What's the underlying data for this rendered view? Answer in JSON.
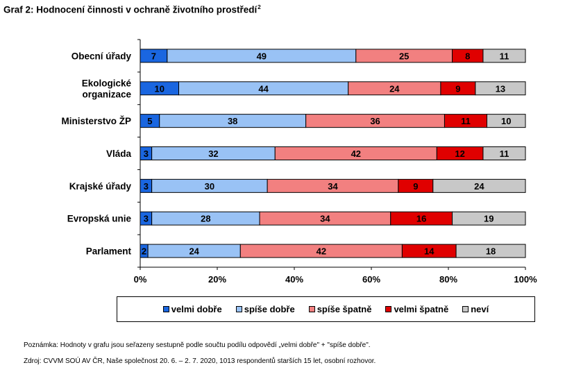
{
  "title": "Graf 2: Hodnocení činnosti v ochraně životního prostředí",
  "title_sup": "2",
  "chart_data": {
    "type": "bar",
    "orientation": "horizontal",
    "stacked": true,
    "percent": true,
    "categories": [
      [
        "Obecní úřady"
      ],
      [
        "Ekologické",
        "organizace"
      ],
      [
        "Ministerstvo ŽP"
      ],
      [
        "Vláda"
      ],
      [
        "Krajské úřady"
      ],
      [
        "Evropská unie"
      ],
      [
        "Parlament"
      ]
    ],
    "series": [
      {
        "name": "velmi dobře",
        "color": "#1A66E0",
        "values": [
          7,
          10,
          5,
          3,
          3,
          3,
          2
        ]
      },
      {
        "name": "spíše dobře",
        "color": "#99C2F5",
        "values": [
          49,
          44,
          38,
          32,
          30,
          28,
          24
        ]
      },
      {
        "name": "spíše špatně",
        "color": "#F28080",
        "values": [
          25,
          24,
          36,
          42,
          34,
          34,
          42
        ]
      },
      {
        "name": "velmi špatně",
        "color": "#E00000",
        "values": [
          8,
          9,
          11,
          12,
          9,
          16,
          14
        ]
      },
      {
        "name": "neví",
        "color": "#C8C8C8",
        "values": [
          11,
          13,
          10,
          11,
          24,
          19,
          18
        ]
      }
    ],
    "xlim": [
      0,
      100
    ],
    "xticks": [
      "0%",
      "20%",
      "40%",
      "60%",
      "80%",
      "100%"
    ],
    "legend": "bottom"
  },
  "notes": [
    "Poznámka: Hodnoty v grafu jsou seřazeny sestupně podle součtu podílu odpovědí „velmi dobře\" + \"spíše dobře\".",
    "Zdroj: CVVM SOÚ AV ČR, Naše společnost  20. 6. – 2. 7. 2020, 1013 respondentů starších 15 let, osobní rozhovor."
  ]
}
